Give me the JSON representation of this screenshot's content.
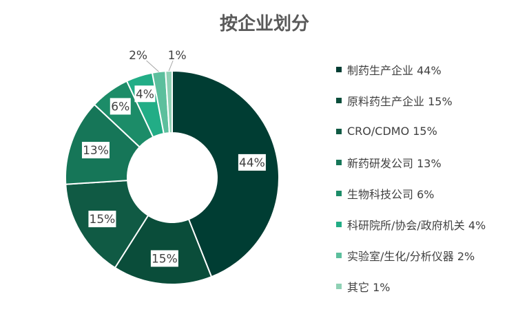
{
  "chart_data": {
    "type": "pie",
    "title": "按企业划分",
    "donut": true,
    "legend_position": "right",
    "categories": [
      "制药生产企业",
      "原料药生产企业",
      "CRO/CDMO",
      "新药研发公司",
      "生物科技公司",
      "科研院所/协会/政府机关",
      "实验室/生化/分析仪器",
      "其它"
    ],
    "values": [
      44,
      15,
      15,
      13,
      6,
      4,
      2,
      1
    ],
    "labels": [
      "44%",
      "15%",
      "15%",
      "13%",
      "6%",
      "4%",
      "2%",
      "1%"
    ],
    "legend_labels": [
      "制药生产企业 44%",
      "原料药生产企业 15%",
      "CRO/CDMO 15%",
      "新药研发公司 13%",
      "生物科技公司 6%",
      "科研院所/协会/政府机关 4%",
      "实验室/生化/分析仪器 2%",
      "其它 1%"
    ],
    "colors": [
      "#003d33",
      "#0a4d3a",
      "#105a44",
      "#167658",
      "#1c8c68",
      "#22ad86",
      "#5cbf9d",
      "#8fd1b5"
    ]
  }
}
